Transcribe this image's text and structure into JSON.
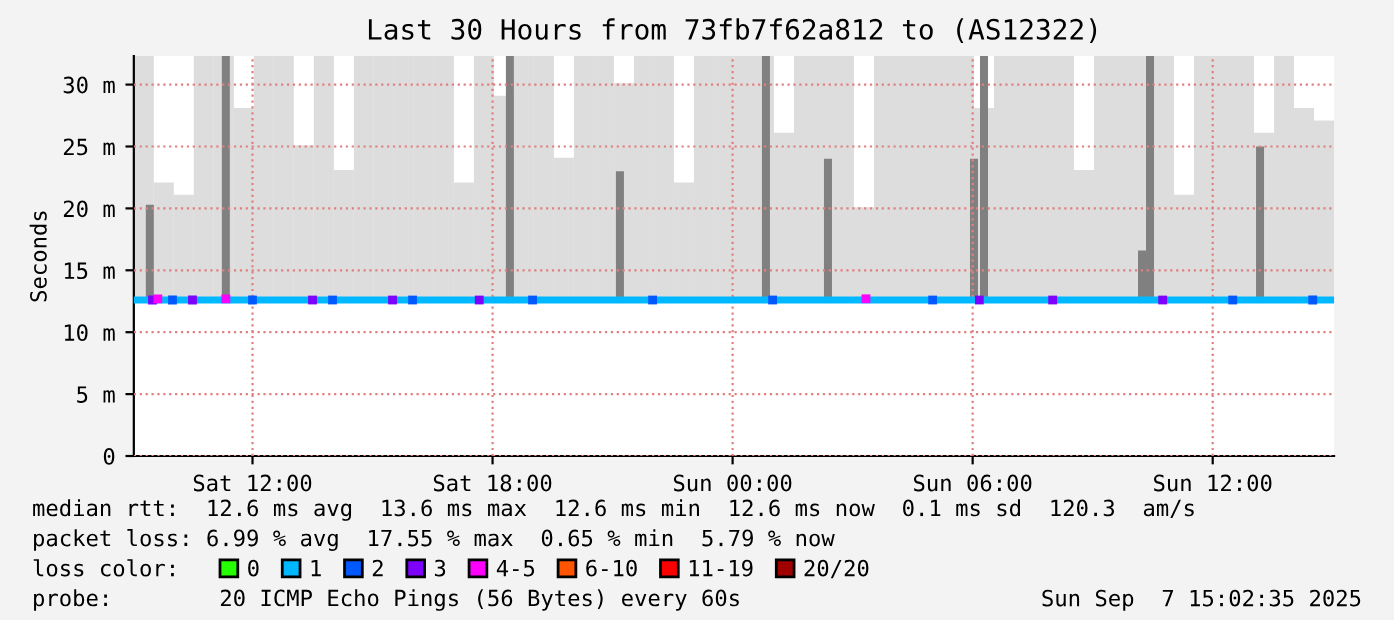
{
  "chart_data": {
    "type": "bar",
    "title": "Last 30 Hours from 73fb7f62a812 to (AS12322)",
    "ylabel": "Seconds",
    "legend_title": "loss color:",
    "legend": "bottom",
    "xlim": [
      "2025-09-06T09:02",
      "2025-09-07T15:02"
    ],
    "xticks": [
      {
        "value": "2025-09-06T12:00",
        "label": "Sat 12:00"
      },
      {
        "value": "2025-09-06T18:00",
        "label": "Sat 18:00"
      },
      {
        "value": "2025-09-07T00:00",
        "label": "Sun 00:00"
      },
      {
        "value": "2025-09-07T06:00",
        "label": "Sun 06:00"
      },
      {
        "value": "2025-09-07T12:00",
        "label": "Sun 12:00"
      }
    ],
    "ylim": [
      0,
      32.3
    ],
    "yticks": [
      0,
      {
        "value": 5,
        "label": "5 m"
      },
      {
        "value": 10,
        "label": "10 m"
      },
      {
        "value": 15,
        "label": "15 m"
      },
      {
        "value": 20,
        "label": "20 m"
      },
      {
        "value": 25,
        "label": "25 m"
      },
      {
        "value": 30,
        "label": "30 m"
      }
    ],
    "grid": true,
    "series": [
      {
        "color": "#dddddd",
        "x": [
          "2025-09-06T09:02",
          "2025-09-06T09:32",
          "2025-09-06T10:02",
          "2025-09-06T10:32",
          "2025-09-06T11:02",
          "2025-09-06T11:32",
          "2025-09-06T12:02",
          "2025-09-06T12:32",
          "2025-09-06T13:02",
          "2025-09-06T13:32",
          "2025-09-06T14:02",
          "2025-09-06T14:32",
          "2025-09-06T15:02",
          "2025-09-06T15:32",
          "2025-09-06T16:02",
          "2025-09-06T16:32",
          "2025-09-06T17:02",
          "2025-09-06T17:32",
          "2025-09-06T18:02",
          "2025-09-06T18:32",
          "2025-09-06T19:02",
          "2025-09-06T19:32",
          "2025-09-06T20:02",
          "2025-09-06T20:32",
          "2025-09-06T21:02",
          "2025-09-06T21:32",
          "2025-09-06T22:02",
          "2025-09-06T22:32",
          "2025-09-06T23:02",
          "2025-09-06T23:32",
          "2025-09-07T00:02",
          "2025-09-07T00:32",
          "2025-09-07T01:02",
          "2025-09-07T01:32",
          "2025-09-07T02:02",
          "2025-09-07T02:32",
          "2025-09-07T03:02",
          "2025-09-07T03:32",
          "2025-09-07T04:02",
          "2025-09-07T04:32",
          "2025-09-07T05:02",
          "2025-09-07T05:32",
          "2025-09-07T06:02",
          "2025-09-07T06:32",
          "2025-09-07T07:02",
          "2025-09-07T07:32",
          "2025-09-07T08:02",
          "2025-09-07T08:32",
          "2025-09-07T09:02",
          "2025-09-07T09:32",
          "2025-09-07T10:02",
          "2025-09-07T10:32",
          "2025-09-07T11:02",
          "2025-09-07T11:32",
          "2025-09-07T12:02",
          "2025-09-07T12:32",
          "2025-09-07T13:02",
          "2025-09-07T13:32",
          "2025-09-07T14:02",
          "2025-09-07T14:32"
        ],
        "base": [
          12.6,
          12.6,
          12.6,
          12.6,
          12.6,
          12.6,
          12.6,
          12.6,
          12.6,
          12.6,
          12.6,
          12.6,
          12.6,
          12.6,
          12.6,
          12.6,
          12.6,
          12.6,
          12.6,
          12.6,
          12.6,
          12.6,
          12.6,
          12.6,
          12.6,
          12.6,
          12.6,
          12.6,
          12.6,
          12.6,
          12.6,
          12.6,
          12.6,
          12.6,
          12.6,
          12.6,
          12.6,
          12.6,
          12.6,
          12.6,
          12.6,
          12.6,
          12.6,
          12.6,
          12.6,
          12.6,
          12.6,
          12.6,
          12.6,
          12.6,
          12.6,
          12.6,
          12.6,
          12.6,
          12.6,
          12.6,
          12.6,
          12.6,
          12.6,
          12.6
        ],
        "values": [
          19.7,
          9.5,
          8.5,
          19.7,
          19.7,
          15.5,
          19.7,
          19.7,
          12.5,
          19.7,
          10.5,
          19.7,
          19.7,
          19.7,
          19.7,
          19.7,
          9.5,
          19.7,
          16.5,
          19.7,
          19.7,
          11.5,
          19.7,
          19.7,
          17.5,
          19.7,
          19.7,
          9.5,
          19.7,
          19.7,
          19.7,
          19.7,
          13.5,
          19.7,
          19.7,
          19.7,
          7.5,
          19.7,
          19.7,
          19.7,
          19.7,
          19.7,
          15.5,
          19.7,
          19.7,
          19.7,
          19.7,
          10.5,
          19.7,
          19.7,
          19.7,
          19.7,
          8.5,
          19.7,
          19.7,
          19.7,
          13.5,
          19.7,
          15.5,
          14.5
        ]
      },
      {
        "color": "#808080",
        "x": [
          "2025-09-06T09:26",
          "2025-09-06T11:20",
          "2025-09-06T18:26",
          "2025-09-06T21:11",
          "2025-09-07T00:50",
          "2025-09-07T02:23",
          "2025-09-07T06:02",
          "2025-09-07T06:17",
          "2025-09-07T10:14",
          "2025-09-07T10:26",
          "2025-09-07T13:11"
        ],
        "base": [
          12.6,
          12.6,
          12.6,
          12.6,
          12.6,
          12.6,
          12.6,
          12.6,
          12.6,
          12.6,
          12.6
        ],
        "values": [
          7.7,
          19.7,
          19.7,
          10.4,
          19.7,
          11.4,
          11.4,
          19.7,
          4,
          19.7,
          12.4
        ]
      },
      {
        "type": "scatter",
        "name": "0",
        "color": "#26ff00"
      },
      {
        "type": "line",
        "name": "1",
        "color": "#00b8ff",
        "marker": "none",
        "x": [
          "2025-09-06T09:02",
          "2025-09-07T15:02"
        ],
        "values": [
          12.6,
          12.6
        ]
      },
      {
        "type": "scatter",
        "name": "2",
        "color": "#0059ff",
        "x": [
          "2025-09-06T10:00",
          "2025-09-06T12:00",
          "2025-09-06T14:00",
          "2025-09-06T16:00",
          "2025-09-06T19:00",
          "2025-09-06T22:00",
          "2025-09-07T01:00",
          "2025-09-07T05:00",
          "2025-09-07T12:30",
          "2025-09-07T14:30"
        ],
        "values": [
          12.6,
          12.6,
          12.6,
          12.6,
          12.6,
          12.6,
          12.6,
          12.6,
          12.6,
          12.6
        ]
      },
      {
        "type": "scatter",
        "name": "3",
        "color": "#7e00ff",
        "x": [
          "2025-09-06T09:30",
          "2025-09-06T10:30",
          "2025-09-06T13:30",
          "2025-09-06T15:30",
          "2025-09-06T17:40",
          "2025-09-07T06:10",
          "2025-09-07T08:00",
          "2025-09-07T10:45"
        ],
        "values": [
          12.6,
          12.6,
          12.6,
          12.6,
          12.6,
          12.6,
          12.6,
          12.6
        ]
      },
      {
        "type": "scatter",
        "name": "4-5",
        "color": "#ff00ff",
        "x": [
          "2025-09-06T09:38",
          "2025-09-06T11:20",
          "2025-09-07T03:20"
        ],
        "values": [
          12.7,
          12.7,
          12.7
        ]
      },
      {
        "type": "scatter",
        "name": "6-10",
        "color": "#ff5500"
      },
      {
        "type": "scatter",
        "name": "11-19",
        "color": "#ff0000"
      },
      {
        "type": "scatter",
        "name": "20/20",
        "color": "#a10000"
      }
    ],
    "marker": "square",
    "annotations": [
      "median rtt:  12.6 ms avg  13.6 ms max  12.6 ms min  12.6 ms now  0.1 ms sd  120.3  am/s",
      "packet loss: 6.99 % avg  17.55 % max  0.65 % min  5.79 % now",
      "probe:        20 ICMP Echo Pings (56 Bytes) every 60s",
      "Sun Sep  7 15:02:35 2025"
    ]
  }
}
